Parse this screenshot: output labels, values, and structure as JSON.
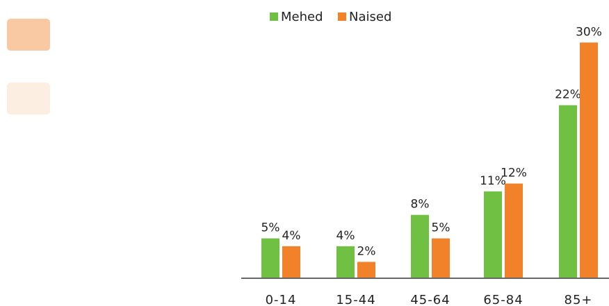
{
  "side_swatches": [
    {
      "name": "swatch-peach",
      "color": "#f8c9a2"
    },
    {
      "name": "swatch-cream",
      "color": "#fdeee2"
    }
  ],
  "chart_data": {
    "type": "bar",
    "categories": [
      "0-14",
      "15-44",
      "45-64",
      "65-84",
      "85+"
    ],
    "series": [
      {
        "name": "Mehed",
        "color": "#6fc043",
        "values": [
          5,
          4,
          8,
          11,
          22
        ],
        "labels": [
          "5%",
          "4%",
          "8%",
          "11%",
          "22%"
        ]
      },
      {
        "name": "Naised",
        "color": "#f18229",
        "values": [
          4,
          2,
          5,
          12,
          30
        ],
        "labels": [
          "4%",
          "2%",
          "5%",
          "12%",
          "30%"
        ]
      }
    ],
    "ylim": [
      0,
      31
    ],
    "legend": "top",
    "grid": false,
    "axis_color": "#333333"
  }
}
